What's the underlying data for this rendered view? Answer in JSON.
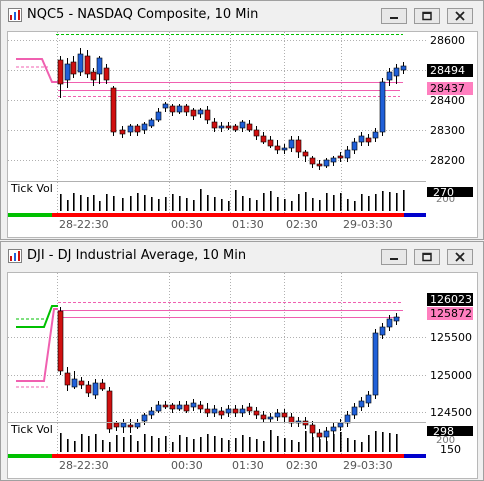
{
  "windows": [
    {
      "title": "NQC5 - NASDAQ Composite, 10 Min",
      "y_ticks": [
        {
          "label": "28600",
          "value": 28600
        },
        {
          "label": "28500",
          "value": 28500
        },
        {
          "label": "28400",
          "value": 28400
        },
        {
          "label": "28300",
          "value": 28300
        },
        {
          "label": "28200",
          "value": 28200
        }
      ],
      "price_badges": [
        {
          "label": "28494",
          "value": 28494,
          "color": "#000000"
        },
        {
          "label": "28437",
          "value": 28437,
          "color": "#ff7fbf"
        }
      ],
      "volume_label": "Tick Vol",
      "volume_badge": {
        "label": "270",
        "partial_tick": "200"
      },
      "time_labels": [
        "28-22:30",
        "00:30",
        "01:30",
        "02:30",
        "29-03:30"
      ]
    },
    {
      "title": "DJI - DJ Industrial Average, 10 Min",
      "y_ticks": [
        {
          "label": "125500",
          "value": 125500
        },
        {
          "label": "125000",
          "value": 125000
        },
        {
          "label": "124500",
          "value": 124500
        }
      ],
      "price_badges": [
        {
          "label": "126023",
          "value": 126023,
          "color": "#000000"
        },
        {
          "label": "125872",
          "value": 125872,
          "color": "#ff7fbf"
        }
      ],
      "volume_label": "Tick Vol",
      "volume_badge": {
        "label": "298",
        "partial_tick": "200"
      },
      "volume_ticks": [
        "150"
      ],
      "time_labels": [
        "28-22:30",
        "00:30",
        "01:30",
        "02:30",
        "29-03:30"
      ]
    }
  ],
  "colors": {
    "up": "#2060d8",
    "down": "#d01010",
    "pink_line": "#f060b0",
    "green_line": "#00c000",
    "grid": "#b0b0b0",
    "badge_black": "#000000",
    "badge_pink": "#ff7fbf",
    "bottom_red": "#ff0000",
    "bottom_green": "#00c000",
    "bottom_blue": "#0000cc"
  },
  "icons": {
    "app": "chart-app-icon",
    "minimize": "minimize-icon",
    "restore": "restore-icon",
    "close": "close-icon"
  }
}
